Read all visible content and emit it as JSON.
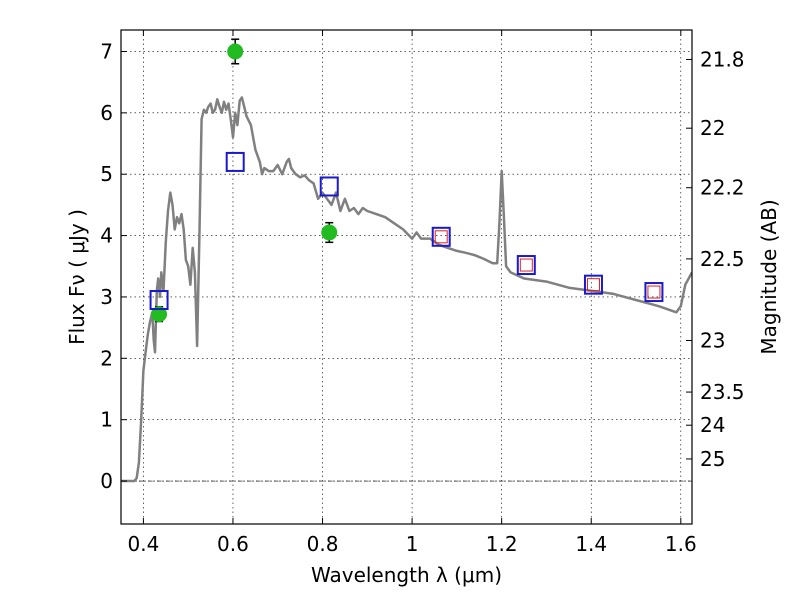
{
  "chart_data": {
    "type": "line",
    "xlabel": "Wavelength  λ (μm)",
    "ylabel": "Flux  Fν  ( μJy )",
    "y2label": "Magnitude (AB)",
    "xlim": [
      0.35,
      1.625
    ],
    "ylim": [
      -0.7,
      7.35
    ],
    "grid": true,
    "x_ticks": [
      0.4,
      0.6,
      0.8,
      1.0,
      1.2,
      1.4,
      1.6
    ],
    "x_tick_labels": [
      "0.4",
      "0.6",
      "0.8",
      "1",
      "1.2",
      "1.4",
      "1.6"
    ],
    "y_ticks": [
      0,
      1,
      2,
      3,
      4,
      5,
      6,
      7
    ],
    "y_tick_labels": [
      "0",
      "1",
      "2",
      "3",
      "4",
      "5",
      "6",
      "7"
    ],
    "mag_ticks": [
      {
        "label": "21.8",
        "flux": 6.87
      },
      {
        "label": "22",
        "flux": 5.75
      },
      {
        "label": "22.2",
        "flux": 4.78
      },
      {
        "label": "22.5",
        "flux": 3.62
      },
      {
        "label": "23",
        "flux": 2.29
      },
      {
        "label": "23.5",
        "flux": 1.45
      },
      {
        "label": "24",
        "flux": 0.91
      },
      {
        "label": "25",
        "flux": 0.36
      }
    ],
    "series": [
      {
        "kind": "line",
        "color": "#808080",
        "x": [
          0.35,
          0.38,
          0.385,
          0.39,
          0.395,
          0.4,
          0.405,
          0.41,
          0.415,
          0.42,
          0.423,
          0.426,
          0.43,
          0.433,
          0.437,
          0.44,
          0.445,
          0.45,
          0.455,
          0.46,
          0.465,
          0.47,
          0.475,
          0.48,
          0.485,
          0.49,
          0.495,
          0.5,
          0.505,
          0.51,
          0.515,
          0.52,
          0.525,
          0.53,
          0.535,
          0.54,
          0.545,
          0.55,
          0.555,
          0.56,
          0.565,
          0.57,
          0.575,
          0.58,
          0.585,
          0.59,
          0.595,
          0.6,
          0.605,
          0.61,
          0.615,
          0.62,
          0.625,
          0.63,
          0.64,
          0.65,
          0.66,
          0.665,
          0.67,
          0.68,
          0.69,
          0.7,
          0.71,
          0.72,
          0.725,
          0.73,
          0.74,
          0.75,
          0.76,
          0.77,
          0.78,
          0.79,
          0.8,
          0.81,
          0.82,
          0.83,
          0.84,
          0.85,
          0.86,
          0.87,
          0.88,
          0.89,
          0.9,
          0.92,
          0.94,
          0.96,
          0.98,
          1.0,
          1.01,
          1.02,
          1.04,
          1.06,
          1.08,
          1.1,
          1.12,
          1.14,
          1.16,
          1.18,
          1.19,
          1.195,
          1.2,
          1.205,
          1.21,
          1.22,
          1.25,
          1.3,
          1.35,
          1.4,
          1.45,
          1.5,
          1.55,
          1.57,
          1.59,
          1.6,
          1.61,
          1.625
        ],
        "y": [
          0.0,
          0.0,
          0.05,
          0.3,
          1.0,
          1.8,
          2.1,
          2.4,
          2.6,
          2.75,
          2.3,
          2.1,
          3.1,
          3.3,
          3.0,
          3.4,
          3.1,
          3.9,
          4.4,
          4.7,
          4.5,
          4.1,
          4.3,
          4.2,
          4.35,
          4.1,
          3.6,
          3.5,
          3.2,
          3.8,
          3.4,
          2.2,
          4.0,
          5.9,
          6.05,
          6.0,
          6.1,
          6.15,
          6.0,
          6.05,
          6.22,
          6.1,
          6.0,
          6.18,
          6.05,
          6.15,
          5.9,
          5.6,
          6.0,
          5.8,
          6.2,
          6.25,
          6.1,
          5.95,
          5.8,
          5.4,
          5.2,
          5.0,
          5.1,
          5.05,
          5.05,
          5.15,
          5.0,
          5.2,
          5.25,
          5.1,
          5.0,
          4.95,
          4.98,
          4.9,
          4.85,
          4.6,
          4.7,
          4.6,
          4.5,
          4.7,
          4.4,
          4.6,
          4.4,
          4.45,
          4.35,
          4.45,
          4.4,
          4.35,
          4.3,
          4.2,
          4.1,
          3.95,
          4.05,
          3.95,
          3.95,
          3.85,
          3.8,
          3.75,
          3.72,
          3.68,
          3.62,
          3.55,
          3.55,
          4.2,
          5.05,
          4.3,
          3.5,
          3.4,
          3.3,
          3.25,
          3.15,
          3.1,
          3.05,
          2.95,
          2.85,
          2.8,
          2.75,
          2.85,
          3.2,
          3.4
        ]
      },
      {
        "kind": "points",
        "marker": "circle",
        "color": "#22bb22",
        "x": [
          0.435,
          0.605,
          0.815
        ],
        "y": [
          2.72,
          7.0,
          4.05
        ],
        "yerr": [
          0.12,
          0.2,
          0.16
        ]
      },
      {
        "kind": "points",
        "marker": "square",
        "color": "#1a1acc",
        "x": [
          0.435,
          0.605,
          0.815,
          1.065,
          1.255,
          1.405,
          1.54
        ],
        "y": [
          2.95,
          5.2,
          4.8,
          3.98,
          3.52,
          3.2,
          3.08
        ]
      },
      {
        "kind": "points",
        "marker": "square-small",
        "color": "#dd2222",
        "x": [
          1.065,
          1.255,
          1.405,
          1.54
        ],
        "y": [
          3.98,
          3.52,
          3.2,
          3.08
        ]
      }
    ]
  }
}
